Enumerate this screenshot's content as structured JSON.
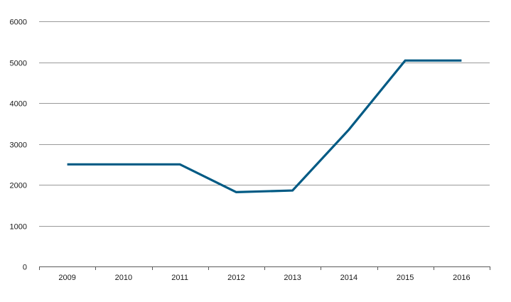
{
  "chart_data": {
    "type": "line",
    "title": "",
    "xlabel": "",
    "ylabel": "",
    "categories": [
      "2009",
      "2010",
      "2011",
      "2012",
      "2013",
      "2014",
      "2015",
      "2016"
    ],
    "series": [
      {
        "values": [
          2500,
          2500,
          2500,
          1820,
          1860,
          3350,
          5040,
          5040
        ]
      }
    ],
    "ylim": [
      0,
      6000
    ],
    "yticks": [
      0,
      1000,
      2000,
      3000,
      4000,
      5000,
      6000
    ],
    "grid": "horizontal",
    "legend": "none",
    "colors": {
      "line": "#005a84",
      "grid": "#9a9a9a",
      "axis": "#5a5a5a",
      "text": "#1a1a1a"
    }
  }
}
